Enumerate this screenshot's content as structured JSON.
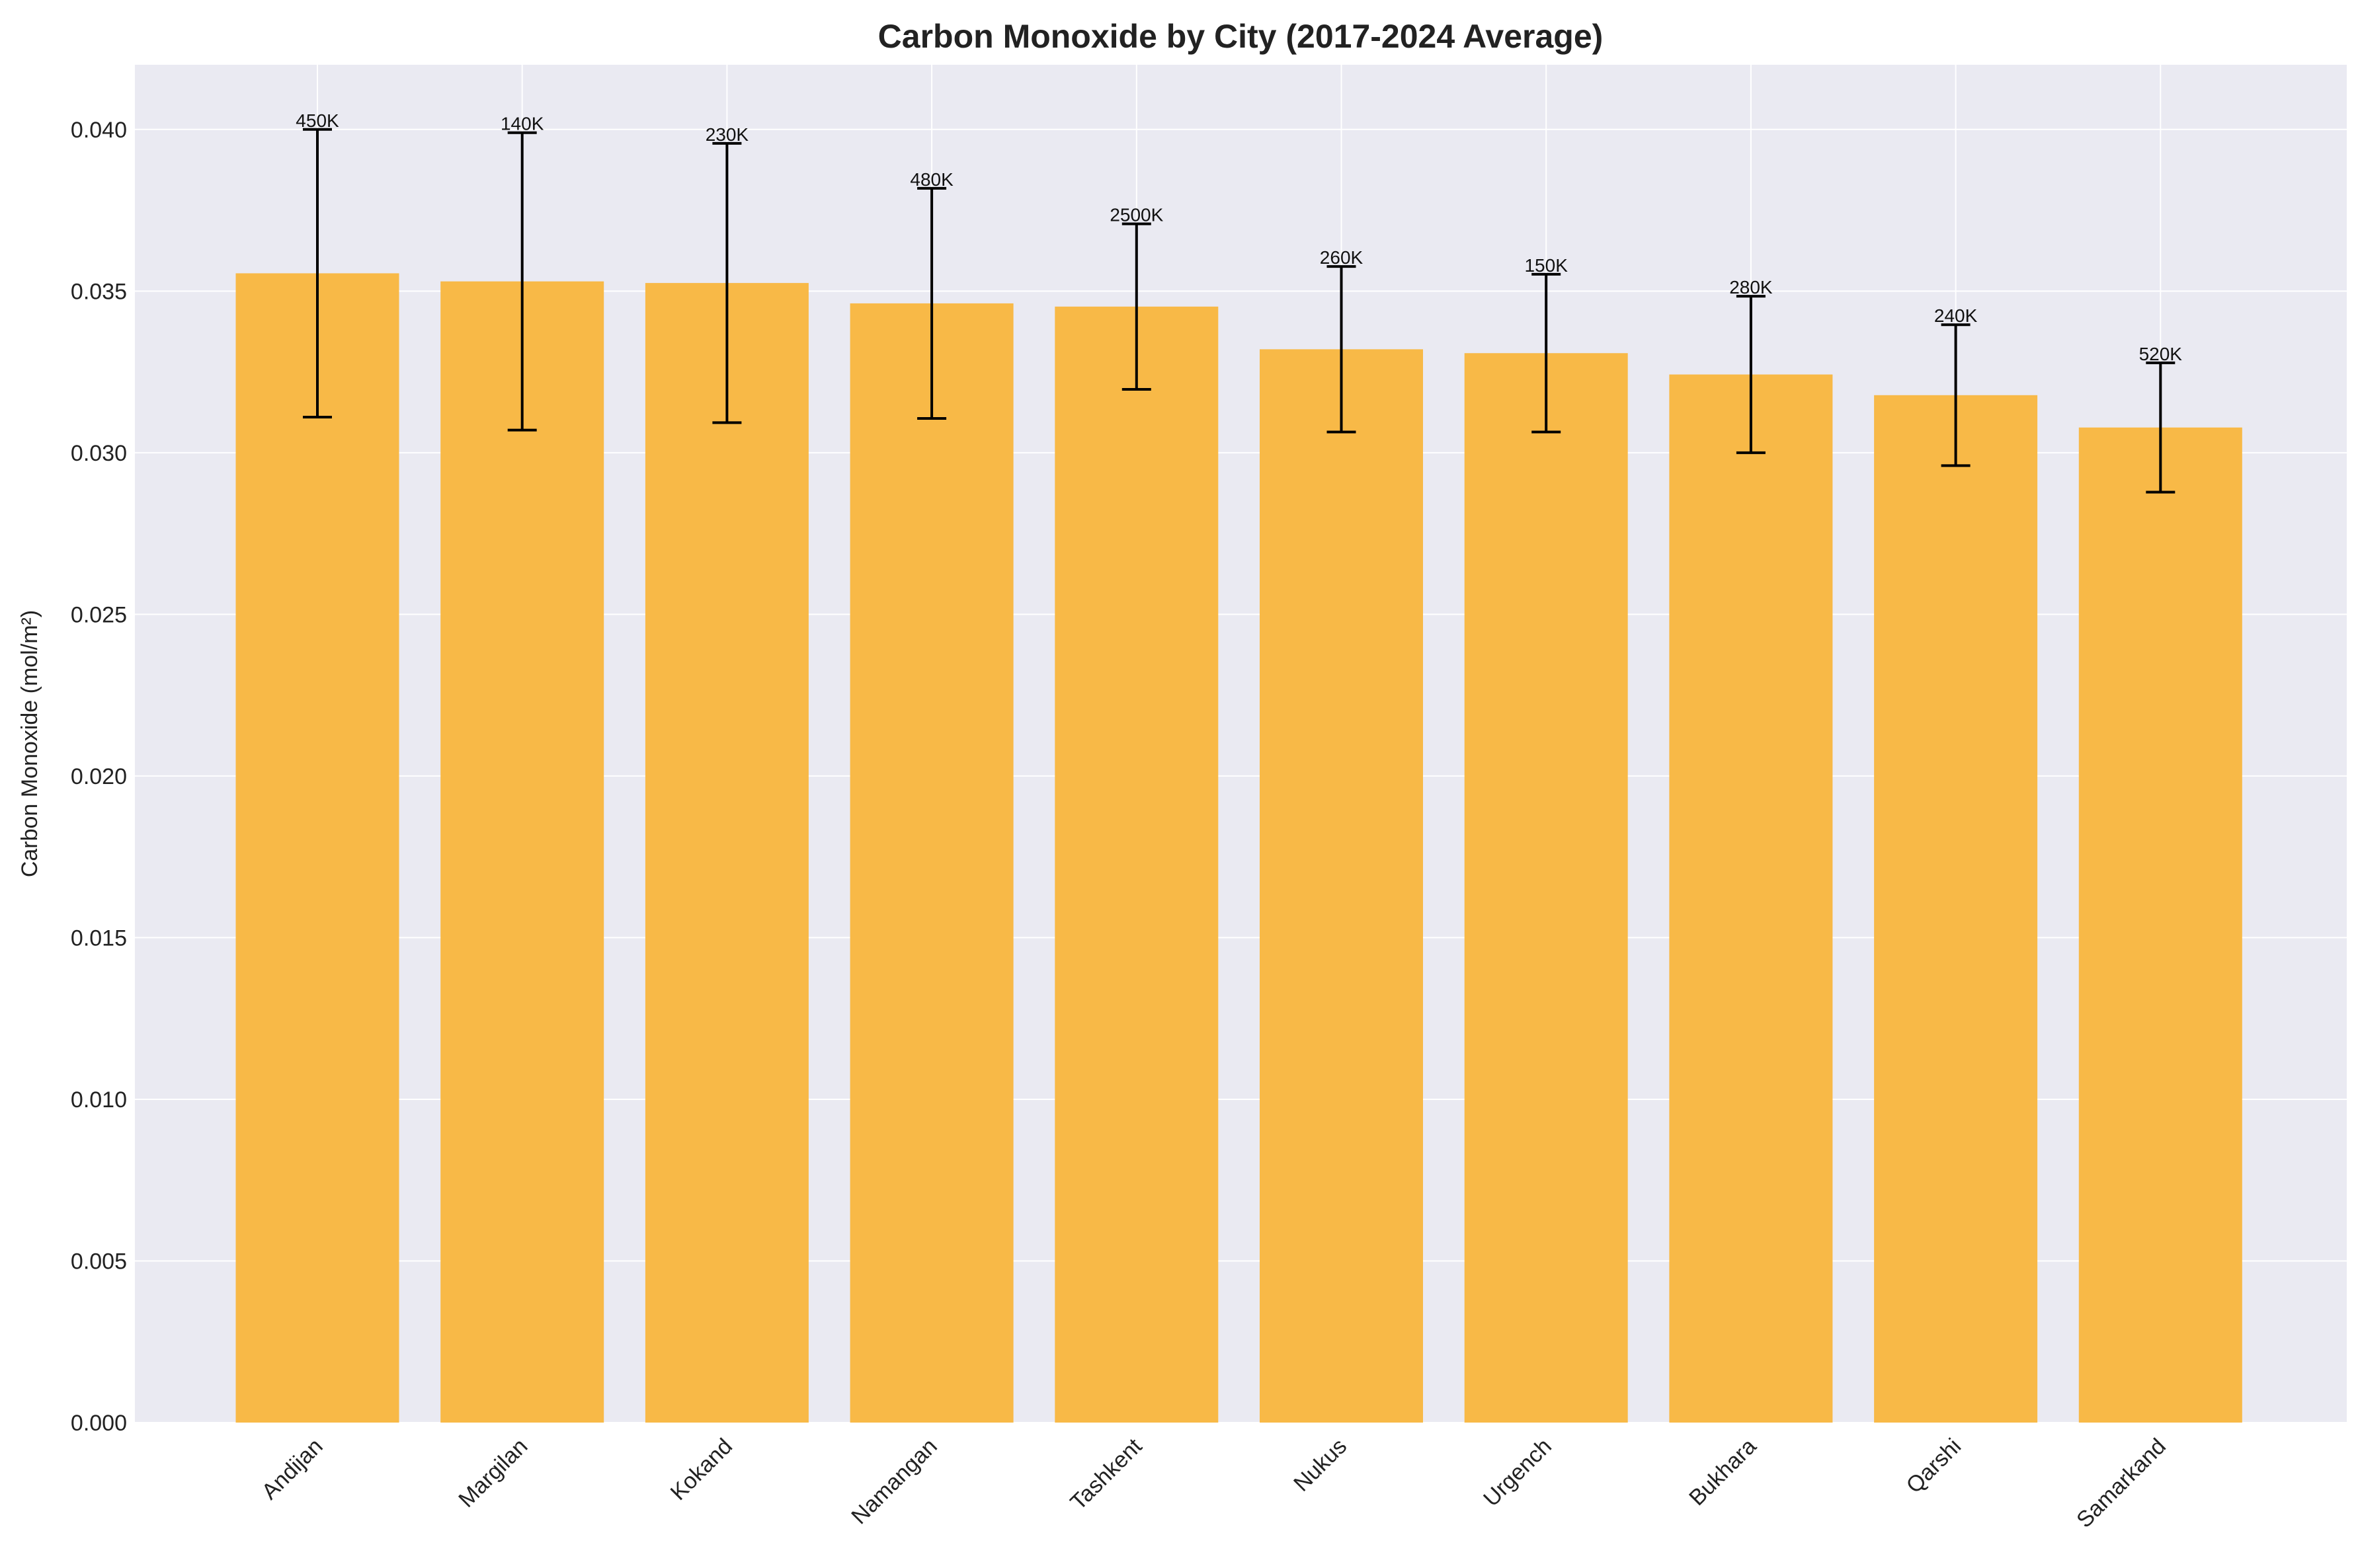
{
  "chart_data": {
    "type": "bar",
    "title": "Carbon Monoxide by City (2017-2024 Average)",
    "xlabel": "",
    "ylabel": "Carbon Monoxide (mol/m²)",
    "ylim": [
      0,
      0.042
    ],
    "yticks": [
      0.0,
      0.005,
      0.01,
      0.015,
      0.02,
      0.025,
      0.03,
      0.035,
      0.04
    ],
    "ytick_labels": [
      "0.000",
      "0.005",
      "0.010",
      "0.015",
      "0.020",
      "0.025",
      "0.030",
      "0.035",
      "0.040"
    ],
    "grid": true,
    "colors": {
      "bar": "#f8b947",
      "background": "#eaeaf2",
      "grid": "#ffffff",
      "error_bar": "#000000"
    },
    "categories": [
      "Andijan",
      "Margilan",
      "Kokand",
      "Namangan",
      "Tashkent",
      "Nukus",
      "Urgench",
      "Bukhara",
      "Qarshi",
      "Samarkand"
    ],
    "values": [
      0.03555,
      0.0353,
      0.03525,
      0.03462,
      0.03452,
      0.0332,
      0.03308,
      0.03242,
      0.03178,
      0.03078
    ],
    "error": [
      0.00445,
      0.0046,
      0.00432,
      0.00356,
      0.00256,
      0.00256,
      0.00244,
      0.00242,
      0.00218,
      0.002
    ],
    "data_labels": [
      "450K",
      "140K",
      "230K",
      "480K",
      "2500K",
      "260K",
      "150K",
      "280K",
      "240K",
      "520K"
    ]
  }
}
